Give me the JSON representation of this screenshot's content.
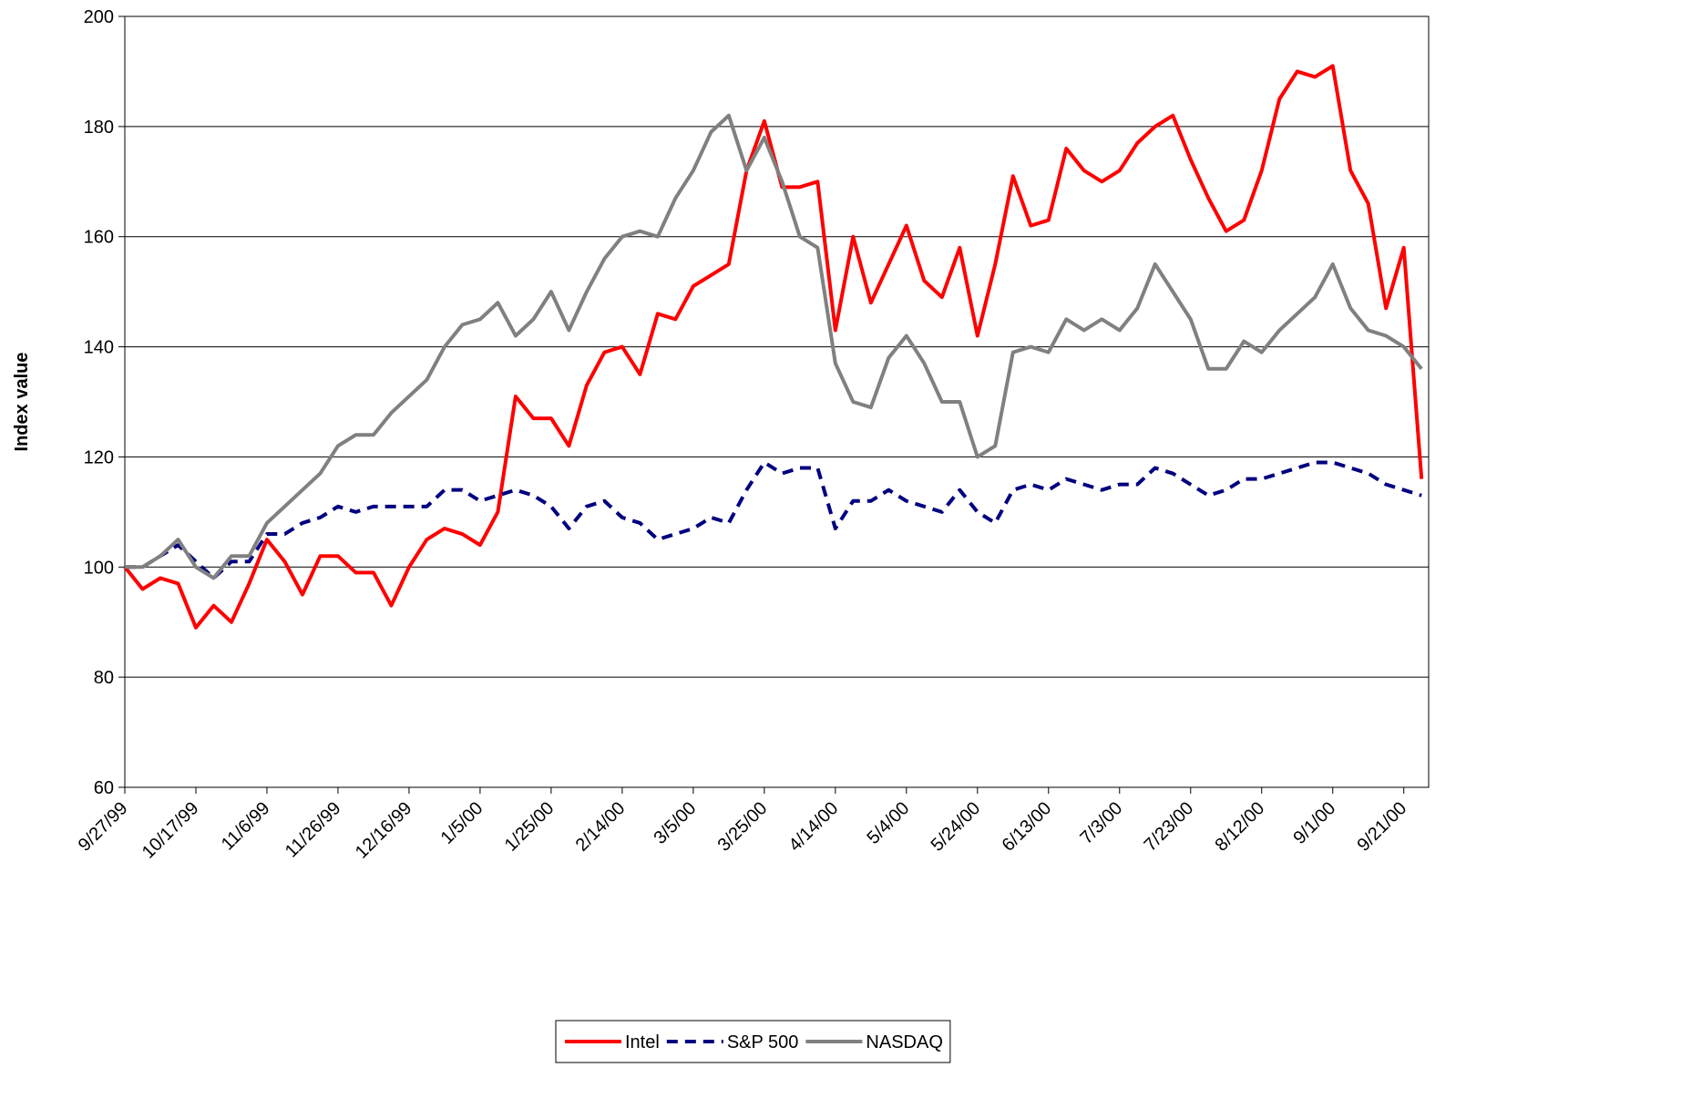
{
  "chart_data": {
    "type": "line",
    "y_label": "Index value",
    "x": [
      "9/27/99",
      "10/2/99",
      "10/7/99",
      "10/12/99",
      "10/17/99",
      "10/22/99",
      "10/27/99",
      "11/1/99",
      "11/6/99",
      "11/11/99",
      "11/16/99",
      "11/21/99",
      "11/26/99",
      "12/1/99",
      "12/6/99",
      "12/11/99",
      "12/16/99",
      "12/21/99",
      "12/26/99",
      "12/31/99",
      "1/5/00",
      "1/10/00",
      "1/15/00",
      "1/20/00",
      "1/25/00",
      "1/30/00",
      "2/4/00",
      "2/9/00",
      "2/14/00",
      "2/19/00",
      "2/24/00",
      "2/29/00",
      "3/5/00",
      "3/10/00",
      "3/15/00",
      "3/20/00",
      "3/25/00",
      "3/30/00",
      "4/4/00",
      "4/9/00",
      "4/14/00",
      "4/19/00",
      "4/24/00",
      "4/29/00",
      "5/4/00",
      "5/9/00",
      "5/14/00",
      "5/19/00",
      "5/24/00",
      "5/29/00",
      "6/3/00",
      "6/8/00",
      "6/13/00",
      "6/18/00",
      "6/23/00",
      "6/28/00",
      "7/3/00",
      "7/8/00",
      "7/13/00",
      "7/18/00",
      "7/23/00",
      "7/28/00",
      "8/2/00",
      "8/7/00",
      "8/12/00",
      "8/17/00",
      "8/22/00",
      "8/27/00",
      "9/1/00",
      "9/6/00",
      "9/11/00",
      "9/16/00",
      "9/21/00",
      "9/26/00"
    ],
    "series": [
      {
        "name": "Intel",
        "color": "#ff0000",
        "dash": "solid",
        "values": [
          100,
          96,
          98,
          97,
          89,
          93,
          90,
          97,
          105,
          101,
          95,
          102,
          102,
          99,
          99,
          93,
          100,
          105,
          107,
          106,
          104,
          110,
          131,
          127,
          127,
          122,
          133,
          139,
          140,
          135,
          146,
          145,
          151,
          153,
          155,
          172,
          181,
          169,
          169,
          170,
          143,
          160,
          148,
          155,
          162,
          152,
          149,
          158,
          142,
          155,
          171,
          162,
          163,
          176,
          172,
          170,
          172,
          177,
          180,
          182,
          174,
          167,
          161,
          163,
          172,
          185,
          190,
          189,
          191,
          172,
          166,
          147,
          158,
          116
        ]
      },
      {
        "name": "S&P 500",
        "color": "#000080",
        "dash": "dashed",
        "values": [
          100,
          100,
          102,
          104,
          101,
          98,
          101,
          101,
          106,
          106,
          108,
          109,
          111,
          110,
          111,
          111,
          111,
          111,
          114,
          114,
          112,
          113,
          114,
          113,
          111,
          107,
          111,
          112,
          109,
          108,
          105,
          106,
          107,
          109,
          108,
          114,
          119,
          117,
          118,
          118,
          107,
          112,
          112,
          114,
          112,
          111,
          110,
          114,
          110,
          108,
          114,
          115,
          114,
          116,
          115,
          114,
          115,
          115,
          118,
          117,
          115,
          113,
          114,
          116,
          116,
          117,
          118,
          119,
          119,
          118,
          117,
          115,
          114,
          113
        ]
      },
      {
        "name": "NASDAQ",
        "color": "#808080",
        "dash": "solid",
        "values": [
          100,
          100,
          102,
          105,
          100,
          98,
          102,
          102,
          108,
          111,
          114,
          117,
          122,
          124,
          124,
          128,
          131,
          134,
          140,
          144,
          145,
          148,
          142,
          145,
          150,
          143,
          150,
          156,
          160,
          161,
          160,
          167,
          172,
          179,
          182,
          172,
          178,
          170,
          160,
          158,
          137,
          130,
          129,
          138,
          142,
          137,
          130,
          130,
          120,
          122,
          139,
          140,
          139,
          145,
          143,
          145,
          143,
          147,
          155,
          150,
          145,
          136,
          136,
          141,
          139,
          143,
          146,
          149,
          155,
          147,
          143,
          142,
          140,
          136
        ]
      }
    ],
    "xlim": [
      "9/27/99",
      "9/28/00"
    ],
    "xticks": [
      "9/27/99",
      "10/17/99",
      "11/6/99",
      "11/26/99",
      "12/16/99",
      "1/5/00",
      "1/25/00",
      "2/14/00",
      "3/5/00",
      "3/25/00",
      "4/14/00",
      "5/4/00",
      "5/24/00",
      "6/13/00",
      "7/3/00",
      "7/23/00",
      "8/12/00",
      "9/1/00",
      "9/21/00"
    ],
    "ylim": [
      60,
      200
    ],
    "yticks": [
      60,
      80,
      100,
      120,
      140,
      160,
      180,
      200
    ],
    "grid": true,
    "legend": "bottom"
  }
}
